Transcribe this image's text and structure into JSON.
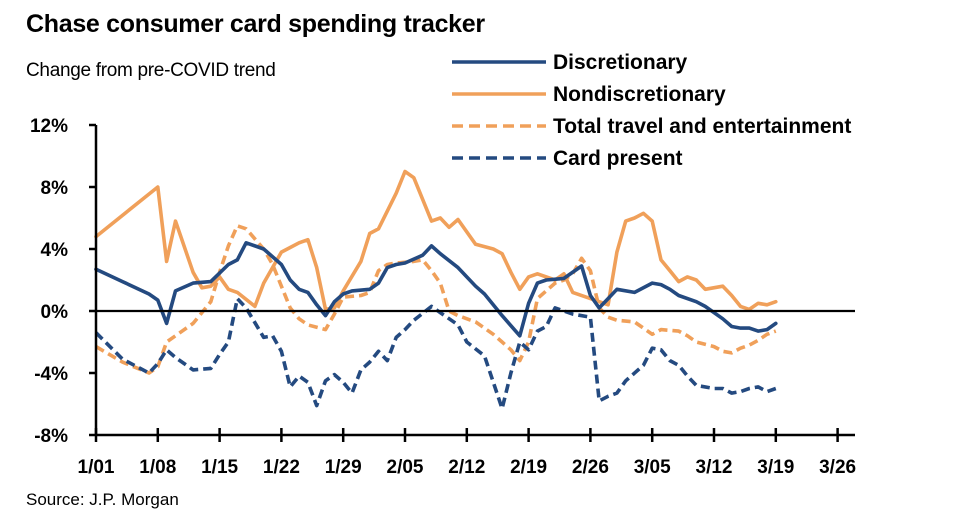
{
  "chart_data": {
    "type": "line",
    "title": "Chase consumer card spending tracker",
    "subtitle": "Change from pre-COVID trend",
    "source": "Source: J.P. Morgan",
    "xlabel": "",
    "ylabel": "",
    "x_unit": "days since 1/01",
    "xlim": [
      0,
      88
    ],
    "ylim": [
      -8,
      12
    ],
    "y_ticks": [
      {
        "value": 12,
        "label": "12%"
      },
      {
        "value": 8,
        "label": "8%"
      },
      {
        "value": 4,
        "label": "4%"
      },
      {
        "value": 0,
        "label": "0%"
      },
      {
        "value": -4,
        "label": "-4%"
      },
      {
        "value": -8,
        "label": "-8%"
      }
    ],
    "x_ticks": [
      {
        "value": 0,
        "label": "1/01"
      },
      {
        "value": 7,
        "label": "1/08"
      },
      {
        "value": 14,
        "label": "1/15"
      },
      {
        "value": 21,
        "label": "1/22"
      },
      {
        "value": 28,
        "label": "1/29"
      },
      {
        "value": 35,
        "label": "2/05"
      },
      {
        "value": 42,
        "label": "2/12"
      },
      {
        "value": 49,
        "label": "2/19"
      },
      {
        "value": 56,
        "label": "2/26"
      },
      {
        "value": 63,
        "label": "3/05"
      },
      {
        "value": 70,
        "label": "3/12"
      },
      {
        "value": 77,
        "label": "3/19"
      },
      {
        "value": 84,
        "label": "3/26"
      }
    ],
    "grid": false,
    "zero_line": true,
    "legend_position": "top-right",
    "series": [
      {
        "name": "Discretionary",
        "color": "#244a80",
        "style": "solid",
        "x": [
          0,
          3,
          6,
          7,
          8,
          9,
          11,
          13,
          15,
          16,
          17,
          19,
          21,
          22,
          23,
          24,
          25,
          26,
          27,
          28,
          29,
          31,
          32,
          33,
          34,
          35,
          37,
          38,
          39,
          41,
          43,
          44,
          46,
          48,
          49,
          50,
          51,
          53,
          55,
          56,
          57,
          58,
          59,
          61,
          63,
          64,
          65,
          66,
          68,
          69,
          71,
          72,
          73,
          74,
          75,
          76,
          77
        ],
        "values": [
          2.7,
          1.9,
          1.1,
          0.7,
          -0.8,
          1.3,
          1.8,
          1.9,
          3.0,
          3.3,
          4.4,
          4.0,
          3.0,
          2.0,
          1.4,
          1.2,
          0.4,
          -0.3,
          0.6,
          1.1,
          1.3,
          1.4,
          1.8,
          2.8,
          3.0,
          3.1,
          3.6,
          4.2,
          3.7,
          2.8,
          1.6,
          1.1,
          -0.3,
          -1.6,
          0.5,
          1.8,
          2.0,
          2.1,
          2.9,
          1.0,
          0.2,
          0.8,
          1.4,
          1.2,
          1.8,
          1.7,
          1.4,
          1.0,
          0.6,
          0.3,
          -0.5,
          -1.0,
          -1.1,
          -1.1,
          -1.3,
          -1.2,
          -0.8
        ]
      },
      {
        "name": "Nondiscretionary",
        "color": "#f0a05a",
        "style": "solid",
        "x": [
          0,
          7,
          8,
          9,
          11,
          12,
          13,
          14,
          15,
          16,
          18,
          19,
          21,
          22,
          23,
          24,
          25,
          26,
          27,
          28,
          30,
          31,
          32,
          34,
          35,
          36,
          38,
          39,
          40,
          41,
          43,
          45,
          46,
          47,
          48,
          49,
          50,
          52,
          53,
          54,
          56,
          57,
          58,
          59,
          60,
          61,
          62,
          63,
          64,
          65,
          66,
          67,
          68,
          69,
          71,
          72,
          73,
          74,
          75,
          76,
          77
        ],
        "values": [
          4.8,
          8.0,
          3.2,
          5.8,
          2.5,
          1.5,
          1.6,
          2.2,
          1.4,
          1.2,
          0.3,
          1.8,
          3.8,
          4.1,
          4.4,
          4.6,
          2.8,
          0.1,
          0.2,
          1.3,
          3.2,
          5.0,
          5.3,
          7.6,
          9.0,
          8.6,
          5.8,
          6.0,
          5.4,
          5.9,
          4.3,
          4.0,
          3.7,
          2.5,
          1.4,
          2.2,
          2.4,
          2.0,
          2.4,
          1.2,
          0.8,
          0.6,
          0.4,
          3.8,
          5.8,
          6.0,
          6.3,
          5.8,
          3.3,
          2.6,
          1.9,
          2.2,
          2.0,
          1.4,
          1.6,
          1.0,
          0.3,
          0.1,
          0.5,
          0.4,
          0.6
        ]
      },
      {
        "name": "Total travel and entertainment",
        "color": "#f0a05a",
        "style": "dashed",
        "x": [
          0,
          3,
          6,
          7,
          8,
          9,
          11,
          13,
          14,
          15,
          16,
          17,
          19,
          20,
          21,
          22,
          23,
          24,
          26,
          27,
          28,
          30,
          31,
          32,
          33,
          34,
          36,
          37,
          38,
          39,
          40,
          41,
          43,
          45,
          46,
          47,
          48,
          49,
          50,
          52,
          53,
          54,
          55,
          56,
          57,
          58,
          59,
          61,
          62,
          63,
          64,
          66,
          67,
          68,
          70,
          71,
          72,
          73,
          74,
          75,
          76,
          77
        ],
        "values": [
          -2.3,
          -3.3,
          -4.0,
          -3.6,
          -2.0,
          -1.6,
          -0.8,
          0.6,
          2.5,
          4.2,
          5.5,
          5.3,
          4.0,
          3.0,
          1.6,
          0.2,
          -0.5,
          -0.9,
          -1.2,
          -0.2,
          0.9,
          1.0,
          1.2,
          2.6,
          3.0,
          3.1,
          3.2,
          3.3,
          2.6,
          1.8,
          0.0,
          -0.3,
          -0.7,
          -1.5,
          -2.0,
          -2.5,
          -3.2,
          -2.0,
          0.8,
          1.8,
          2.0,
          2.4,
          3.4,
          2.6,
          0.2,
          -0.4,
          -0.6,
          -0.7,
          -1.1,
          -1.5,
          -1.2,
          -1.3,
          -1.6,
          -2.0,
          -2.3,
          -2.6,
          -2.7,
          -2.4,
          -2.2,
          -1.9,
          -1.5,
          -1.3
        ]
      },
      {
        "name": "Card present",
        "color": "#244a80",
        "style": "dashed",
        "x": [
          0,
          3,
          6,
          7,
          8,
          9,
          11,
          13,
          14,
          15,
          16,
          17,
          19,
          20,
          21,
          22,
          23,
          24,
          25,
          26,
          27,
          28,
          29,
          30,
          31,
          32,
          33,
          34,
          35,
          36,
          38,
          39,
          41,
          42,
          44,
          46,
          47,
          48,
          49,
          50,
          51,
          52,
          54,
          56,
          57,
          58,
          59,
          60,
          62,
          63,
          64,
          65,
          66,
          67,
          68,
          70,
          71,
          72,
          73,
          74,
          75,
          76,
          77
        ],
        "values": [
          -1.4,
          -3.1,
          -4.0,
          -3.4,
          -2.5,
          -3.0,
          -3.8,
          -3.7,
          -2.8,
          -2.0,
          0.8,
          0.2,
          -1.7,
          -1.6,
          -2.6,
          -4.9,
          -4.2,
          -4.6,
          -6.1,
          -4.5,
          -4.1,
          -4.6,
          -5.3,
          -3.8,
          -3.3,
          -2.6,
          -3.2,
          -1.7,
          -1.2,
          -0.6,
          0.3,
          -0.1,
          -0.9,
          -2.0,
          -2.9,
          -6.3,
          -4.0,
          -2.0,
          -2.5,
          -1.3,
          -1.0,
          0.2,
          -0.2,
          -0.4,
          -5.8,
          -5.5,
          -5.3,
          -4.5,
          -3.5,
          -2.4,
          -2.5,
          -3.2,
          -3.5,
          -4.2,
          -4.8,
          -5.0,
          -5.0,
          -5.3,
          -5.2,
          -5.0,
          -4.9,
          -5.2,
          -5.0
        ]
      }
    ]
  }
}
